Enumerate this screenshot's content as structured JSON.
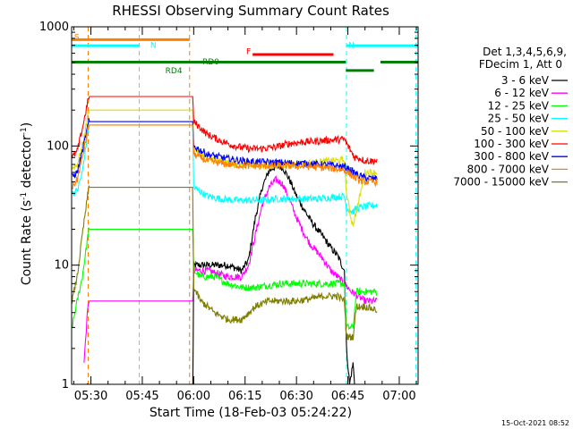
{
  "chart_data": {
    "type": "line",
    "title": "RHESSI Observing Summary Count Rates",
    "xlabel": "Start Time (18-Feb-03 05:24:22)",
    "ylabel_main": "Count Rate (s",
    "ylabel_sup1": "-1",
    "ylabel_mid": " detector",
    "ylabel_sup2": "-1",
    "ylabel_end": ")",
    "stamp": "15-Oct-2021 08:52",
    "x_ticks": [
      "05:30",
      "05:45",
      "06:00",
      "06:15",
      "06:30",
      "06:45",
      "07:00"
    ],
    "x_tick_minutes": [
      330,
      345,
      360,
      375,
      390,
      405,
      420
    ],
    "xlim_minutes": [
      324.37,
      425.5
    ],
    "y_scale": "log",
    "ylim": [
      1,
      1000
    ],
    "y_ticks": [
      "1",
      "10",
      "100",
      "1000"
    ],
    "legend_header": [
      "Det 1,3,4,5,6,9,",
      "FDecim 1, Att 0"
    ],
    "legend_placement": "right",
    "series": [
      {
        "name": "3 - 6 keV",
        "color": "#000000",
        "points": [
          [
            329.0,
            1
          ],
          [
            329.4,
            0.5
          ],
          [
            359.7,
            0.5
          ],
          [
            360.0,
            10
          ],
          [
            364,
            10
          ],
          [
            370,
            10
          ],
          [
            374,
            9
          ],
          [
            376,
            11
          ],
          [
            378,
            25
          ],
          [
            380,
            45
          ],
          [
            382,
            62
          ],
          [
            384,
            68
          ],
          [
            386,
            66
          ],
          [
            388,
            52
          ],
          [
            390,
            38
          ],
          [
            392,
            30
          ],
          [
            394,
            24
          ],
          [
            396,
            20
          ],
          [
            398,
            17
          ],
          [
            400,
            14
          ],
          [
            402,
            12
          ],
          [
            404,
            9
          ],
          [
            404.6,
            2
          ],
          [
            405.5,
            1
          ],
          [
            406.5,
            1.5
          ],
          [
            407.0,
            1
          ]
        ]
      },
      {
        "name": "6 - 12 keV",
        "color": "#ff00ff",
        "points": [
          [
            328.0,
            1.5
          ],
          [
            328.5,
            2.5
          ],
          [
            329.0,
            4
          ],
          [
            329.4,
            5
          ],
          [
            359.7,
            5
          ],
          [
            360.0,
            9
          ],
          [
            364,
            9
          ],
          [
            370,
            8
          ],
          [
            374,
            8
          ],
          [
            376,
            10
          ],
          [
            378,
            18
          ],
          [
            380,
            32
          ],
          [
            382,
            45
          ],
          [
            384,
            52
          ],
          [
            386,
            48
          ],
          [
            388,
            35
          ],
          [
            390,
            25
          ],
          [
            392,
            19
          ],
          [
            394,
            15
          ],
          [
            396,
            13
          ],
          [
            398,
            11
          ],
          [
            400,
            9
          ],
          [
            402,
            8
          ],
          [
            404,
            7
          ],
          [
            406,
            6
          ],
          [
            408,
            5.5
          ],
          [
            410,
            5
          ],
          [
            412,
            5
          ],
          [
            413.5,
            5
          ]
        ]
      },
      {
        "name": "12 - 25 keV",
        "color": "#00ff00",
        "points": [
          [
            324.5,
            3
          ],
          [
            326,
            5
          ],
          [
            327.5,
            8
          ],
          [
            329.4,
            20
          ],
          [
            359.7,
            20
          ],
          [
            360.0,
            9
          ],
          [
            362,
            8
          ],
          [
            366,
            8
          ],
          [
            370,
            7
          ],
          [
            374,
            6.5
          ],
          [
            378,
            6.5
          ],
          [
            382,
            6.8
          ],
          [
            386,
            7
          ],
          [
            390,
            7
          ],
          [
            395,
            7
          ],
          [
            400,
            7
          ],
          [
            404,
            7
          ],
          [
            404.6,
            3
          ],
          [
            406.5,
            3
          ],
          [
            407.5,
            6
          ],
          [
            410,
            6
          ],
          [
            413.5,
            6
          ]
        ]
      },
      {
        "name": "25 - 50 keV",
        "color": "#00ffff",
        "points": [
          [
            324.5,
            40
          ],
          [
            326,
            42
          ],
          [
            327.5,
            60
          ],
          [
            329.4,
            150
          ],
          [
            359.7,
            150
          ],
          [
            360.0,
            45
          ],
          [
            364,
            38
          ],
          [
            368,
            36
          ],
          [
            372,
            35
          ],
          [
            376,
            35
          ],
          [
            380,
            35
          ],
          [
            384,
            36
          ],
          [
            388,
            36
          ],
          [
            392,
            36
          ],
          [
            396,
            36
          ],
          [
            400,
            37
          ],
          [
            404,
            38
          ],
          [
            404.6,
            30
          ],
          [
            406.5,
            28
          ],
          [
            407.5,
            30
          ],
          [
            410,
            31
          ],
          [
            413.5,
            32
          ]
        ]
      },
      {
        "name": "50 - 100 keV",
        "color": "#dddd00",
        "points": [
          [
            324.5,
            65
          ],
          [
            326,
            70
          ],
          [
            327.5,
            100
          ],
          [
            329.4,
            200
          ],
          [
            359.7,
            200
          ],
          [
            360.0,
            95
          ],
          [
            364,
            80
          ],
          [
            370,
            72
          ],
          [
            376,
            68
          ],
          [
            382,
            68
          ],
          [
            388,
            70
          ],
          [
            394,
            72
          ],
          [
            400,
            75
          ],
          [
            404,
            76
          ],
          [
            404.6,
            40
          ],
          [
            406,
            24
          ],
          [
            406.5,
            22
          ],
          [
            407.5,
            28
          ],
          [
            410,
            60
          ],
          [
            413.5,
            60
          ]
        ]
      },
      {
        "name": "100 - 300 keV",
        "color": "#ff0000",
        "points": [
          [
            324.5,
            80
          ],
          [
            326,
            90
          ],
          [
            327.5,
            140
          ],
          [
            329.4,
            260
          ],
          [
            359.7,
            260
          ],
          [
            360.0,
            160
          ],
          [
            364,
            125
          ],
          [
            368,
            110
          ],
          [
            372,
            100
          ],
          [
            376,
            95
          ],
          [
            380,
            95
          ],
          [
            384,
            98
          ],
          [
            388,
            105
          ],
          [
            392,
            108
          ],
          [
            396,
            110
          ],
          [
            400,
            112
          ],
          [
            404,
            114
          ],
          [
            405,
            100
          ],
          [
            407,
            80
          ],
          [
            408,
            80
          ],
          [
            410,
            75
          ],
          [
            413.5,
            75
          ]
        ]
      },
      {
        "name": "300 - 800 keV",
        "color": "#0000ff",
        "points": [
          [
            324.5,
            55
          ],
          [
            326,
            60
          ],
          [
            327.5,
            90
          ],
          [
            329.4,
            160
          ],
          [
            359.7,
            160
          ],
          [
            360.0,
            100
          ],
          [
            364,
            85
          ],
          [
            370,
            78
          ],
          [
            376,
            74
          ],
          [
            382,
            73
          ],
          [
            388,
            72
          ],
          [
            394,
            71
          ],
          [
            400,
            69
          ],
          [
            404,
            67
          ],
          [
            406,
            62
          ],
          [
            408,
            57
          ],
          [
            410,
            54
          ],
          [
            413.5,
            53
          ]
        ]
      },
      {
        "name": "800 - 7000 keV",
        "color": "#ff7f00",
        "points": [
          [
            324.5,
            45
          ],
          [
            326,
            52
          ],
          [
            327.5,
            80
          ],
          [
            329.4,
            150
          ],
          [
            359.7,
            150
          ],
          [
            360.0,
            85
          ],
          [
            364,
            75
          ],
          [
            370,
            70
          ],
          [
            376,
            68
          ],
          [
            382,
            68
          ],
          [
            388,
            68
          ],
          [
            394,
            67
          ],
          [
            400,
            65
          ],
          [
            404,
            63
          ],
          [
            406,
            57
          ],
          [
            408,
            52
          ],
          [
            410,
            50
          ],
          [
            413.5,
            50
          ]
        ]
      },
      {
        "name": "7000 - 15000 keV",
        "color": "#7f7f00",
        "points": [
          [
            324.5,
            5
          ],
          [
            326,
            8
          ],
          [
            327.5,
            18
          ],
          [
            329.4,
            45
          ],
          [
            359.7,
            45
          ],
          [
            360.0,
            6.5
          ],
          [
            362,
            5
          ],
          [
            364,
            4.5
          ],
          [
            366,
            4
          ],
          [
            370,
            3.5
          ],
          [
            374,
            3.5
          ],
          [
            378,
            4.5
          ],
          [
            382,
            5
          ],
          [
            386,
            5
          ],
          [
            390,
            5
          ],
          [
            394,
            5.2
          ],
          [
            398,
            5.5
          ],
          [
            402,
            5.5
          ],
          [
            404,
            5
          ],
          [
            404.6,
            2.5
          ],
          [
            406.5,
            2.5
          ],
          [
            407.5,
            4.5
          ],
          [
            410,
            4.5
          ],
          [
            413.5,
            4.2
          ]
        ]
      }
    ],
    "state_bars": [
      {
        "label": "S",
        "color": "#ff7f00",
        "x_start": 324.37,
        "x_end": 358.8,
        "label_at": 324.6,
        "level": 780,
        "label_level": 820
      },
      {
        "label": "N",
        "color": "#00ffff",
        "x_start": 324.37,
        "x_end": 344.1,
        "label_at": 346.8,
        "level": 695,
        "label_level": 700
      },
      {
        "label": "N",
        "color": "#00ffff",
        "x_start": 404.6,
        "x_end": 425.5,
        "label_at": 404.6,
        "level": 695,
        "label_level": 700
      },
      {
        "label": "F",
        "color": "#ff0000",
        "x_start": 377.2,
        "x_end": 400.8,
        "label_at": 374.8,
        "level": 585,
        "label_level": 620
      },
      {
        "label": "RD0",
        "color": "#008000",
        "x_start": 324.37,
        "x_end": 404.4,
        "label_at": 362.0,
        "level": 505,
        "label_level": 510
      },
      {
        "label": "RD4",
        "color": "#008000",
        "x_start": 404.4,
        "x_end": 412.6,
        "label_at": 351.2,
        "level": 430,
        "label_level": 430
      },
      {
        "label": "",
        "color": "#008000",
        "x_start": 414.5,
        "x_end": 425.5,
        "label_at": 414.5,
        "level": 505,
        "label_level": 505
      }
    ],
    "vlines": [
      {
        "color": "#ff7f00",
        "x": 329.2
      },
      {
        "color": "#00ffff",
        "x": 344.1
      },
      {
        "color": "#ff7f00",
        "x": 358.8
      },
      {
        "color": "#00ffff",
        "x": 404.6
      },
      {
        "color": "#00ffff",
        "x": 424.9
      }
    ]
  }
}
